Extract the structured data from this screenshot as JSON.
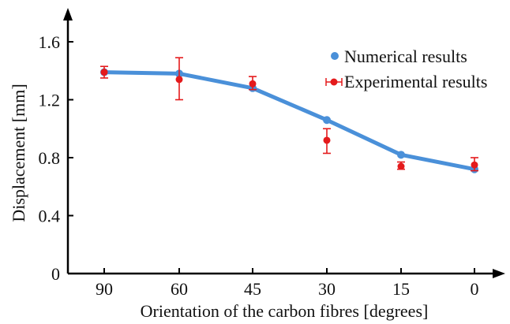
{
  "chart_data": {
    "type": "line",
    "xlabel": "Orientation of the carbon fibres [degrees]",
    "ylabel": "Displacement [mm]",
    "categories": [
      "90",
      "60",
      "45",
      "30",
      "15",
      "0"
    ],
    "y_ticks": [
      "0",
      "0.4",
      "0.8",
      "1.2",
      "1.6"
    ],
    "ylim": [
      0,
      1.75
    ],
    "grid": false,
    "legend_position": "top-right",
    "series": [
      {
        "name": "Numerical results",
        "style": "line-with-markers",
        "color": "#4a90d9",
        "values": [
          1.39,
          1.38,
          1.28,
          1.06,
          0.82,
          0.72
        ]
      },
      {
        "name": "Experimental results",
        "style": "points-with-error-bars",
        "color": "#e41a1c",
        "values": [
          1.39,
          1.34,
          1.31,
          0.92,
          0.74,
          0.75
        ],
        "error_low": [
          1.35,
          1.2,
          1.27,
          0.83,
          0.72,
          0.71
        ],
        "error_high": [
          1.43,
          1.49,
          1.36,
          1.0,
          0.77,
          0.8
        ]
      }
    ]
  }
}
